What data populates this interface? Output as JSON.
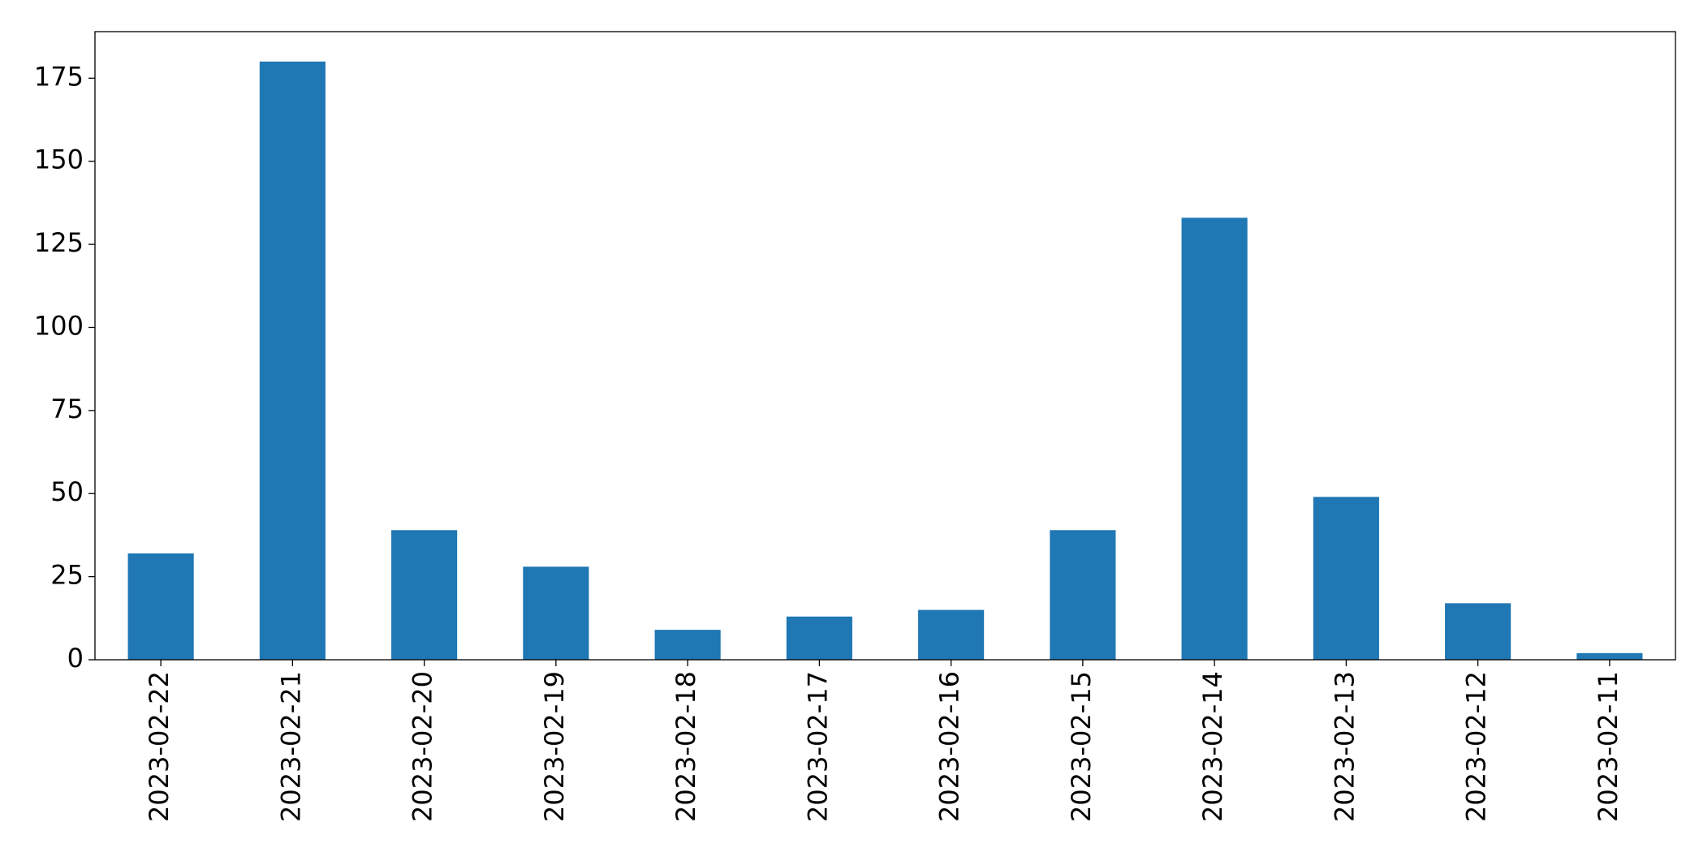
{
  "chart_data": {
    "type": "bar",
    "categories": [
      "2023-02-22",
      "2023-02-21",
      "2023-02-20",
      "2023-02-19",
      "2023-02-18",
      "2023-02-17",
      "2023-02-16",
      "2023-02-15",
      "2023-02-14",
      "2023-02-13",
      "2023-02-12",
      "2023-02-11"
    ],
    "values": [
      32,
      180,
      39,
      28,
      9,
      13,
      15,
      39,
      133,
      49,
      17,
      2
    ],
    "color": "#1f77b4",
    "ylim": [
      0,
      189
    ],
    "yticks": [
      0,
      25,
      50,
      75,
      100,
      125,
      150,
      175
    ],
    "grid": false
  }
}
